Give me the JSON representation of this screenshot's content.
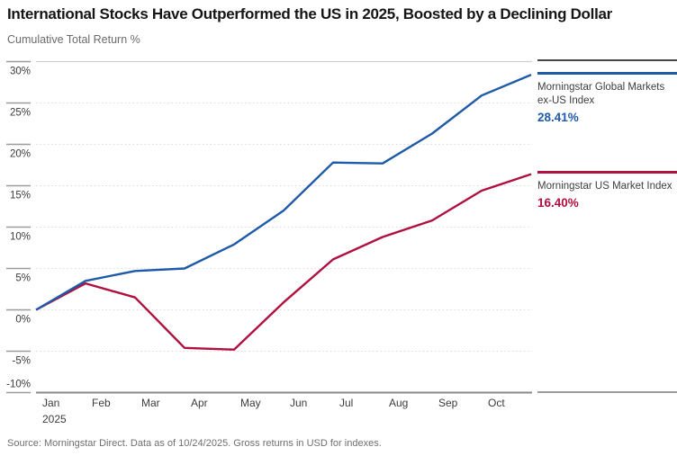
{
  "header": {
    "title": "International Stocks Have Outperformed the US in 2025, Boosted by a Declining Dollar",
    "subtitle": "Cumulative Total Return %"
  },
  "footer": {
    "source": "Source: Morningstar Direct. Data as of 10/24/2025. Gross returns in USD for indexes."
  },
  "chart_data": {
    "type": "line",
    "title": "International Stocks Have Outperformed the US in 2025, Boosted by a Declining Dollar",
    "ylabel": "Cumulative Total Return %",
    "x_tick_labels": [
      "Jan",
      "Feb",
      "Mar",
      "Apr",
      "May",
      "Jun",
      "Jul",
      "Aug",
      "Sep",
      "Oct"
    ],
    "x_year_label": "2025",
    "x_note": "11 points per series: start of Jan 2025 (0%) then each month-end, final point as of 10/24/2025",
    "y_ticks": [
      30,
      25,
      20,
      15,
      10,
      5,
      0,
      -5,
      -10
    ],
    "y_tick_suffix": "%",
    "ylim": [
      -10,
      30
    ],
    "grid": "dotted horizontal gridlines, solid top line, solid dark baseline",
    "legend_position": "right",
    "series": [
      {
        "name": "Morningstar Global Markets ex-US Index",
        "color": "#1E5AA8",
        "final_value_label": "28.41%",
        "values": [
          0,
          3.5,
          4.7,
          5.0,
          7.9,
          12.0,
          17.8,
          17.7,
          21.3,
          25.9,
          28.41
        ]
      },
      {
        "name": "Morningstar US Market Index",
        "color": "#B0103E",
        "final_value_label": "16.40%",
        "values": [
          0,
          3.2,
          1.5,
          -4.6,
          -4.8,
          0.9,
          6.1,
          8.8,
          10.8,
          14.4,
          16.4
        ]
      }
    ]
  }
}
